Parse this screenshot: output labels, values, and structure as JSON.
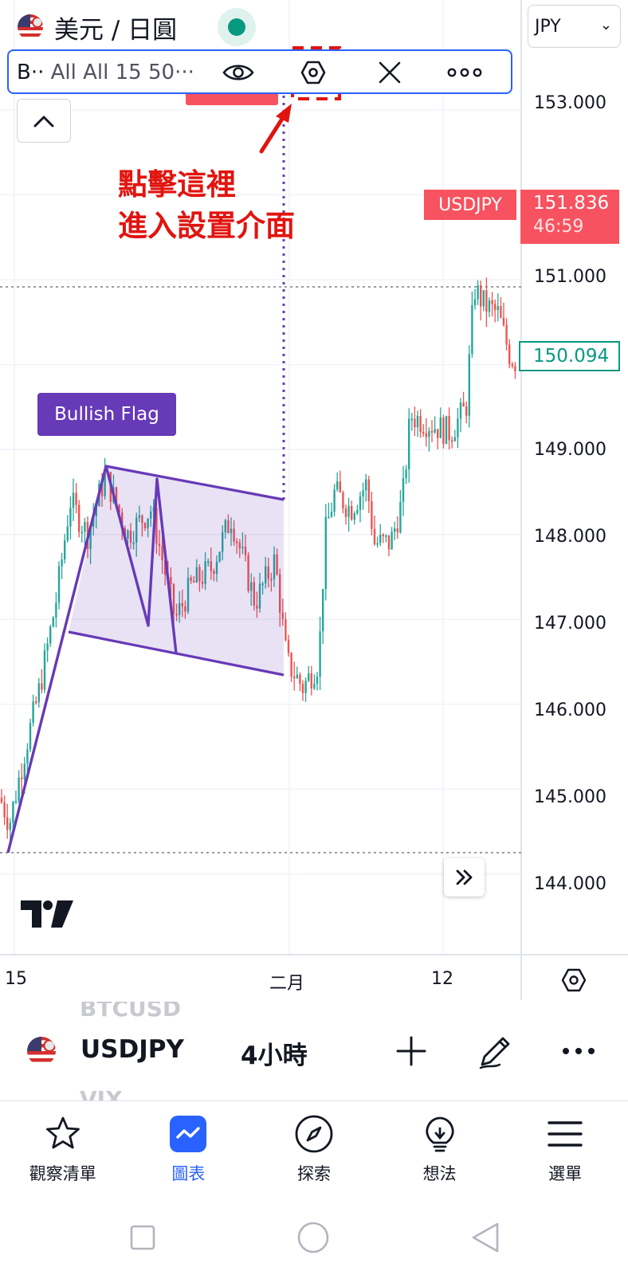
{
  "header": {
    "title": "美元 / 日圓",
    "currency": "JPY"
  },
  "drawing_toolbar": {
    "name_prefix": "B··",
    "name_rest": " All All 15 50···"
  },
  "annotation": {
    "line1": "點擊這裡",
    "line2": "進入設置介面",
    "color": "#e1140f"
  },
  "pattern_label": "Bullish Flag",
  "price_scale": {
    "labels": [
      "153.000",
      "151.000",
      "149.000",
      "148.000",
      "147.000",
      "146.000",
      "145.000",
      "144.000"
    ],
    "symbol_tag": "USDJPY",
    "last_price": "151.836",
    "countdown": "46:59",
    "crosshair_price": "150.094"
  },
  "time_scale": {
    "labels": [
      "15",
      "二月",
      "12"
    ]
  },
  "symbol_bar": {
    "ghost_above": "BTCUSD",
    "symbol": "USDJPY",
    "interval": "4小時",
    "ghost_below": "VIX"
  },
  "bottom_nav": [
    {
      "label": "觀察清單",
      "icon": "star-icon"
    },
    {
      "label": "圖表",
      "icon": "chart-icon"
    },
    {
      "label": "探索",
      "icon": "compass-icon"
    },
    {
      "label": "想法",
      "icon": "lightbulb-icon"
    },
    {
      "label": "選單",
      "icon": "menu-icon"
    }
  ],
  "colors": {
    "up": "#26a69a",
    "down": "#ef5350",
    "pattern": "#673ab7",
    "accent": "#2962ff"
  }
}
